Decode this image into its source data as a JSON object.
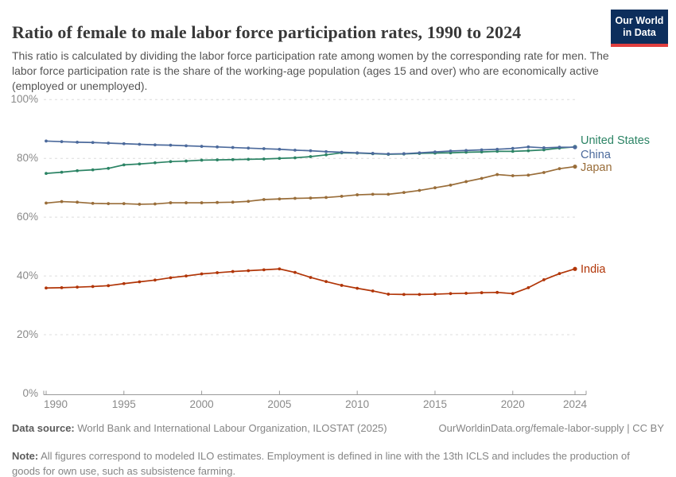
{
  "header": {
    "title": "Ratio of female to male labor force participation rates, 1990 to 2024",
    "subtitle": "This ratio is calculated by dividing the labor force participation rate among women by the corresponding rate for men. The labor force participation rate is the share of the working-age population (ages 15 and over) who are economically active (employed or unemployed).",
    "logo": {
      "line1": "Our World",
      "line2": "in Data"
    }
  },
  "chart_data": {
    "type": "line",
    "title": "Ratio of female to male labor force participation rates, 1990 to 2024",
    "x": [
      1990,
      1991,
      1992,
      1993,
      1994,
      1995,
      1996,
      1997,
      1998,
      1999,
      2000,
      2001,
      2002,
      2003,
      2004,
      2005,
      2006,
      2007,
      2008,
      2009,
      2010,
      2011,
      2012,
      2013,
      2014,
      2015,
      2016,
      2017,
      2018,
      2019,
      2020,
      2021,
      2022,
      2023,
      2024
    ],
    "series": [
      {
        "name": "United States",
        "color": "#2c8465",
        "label_dy": -8,
        "values": [
          74.9,
          75.3,
          75.8,
          76.1,
          76.6,
          77.8,
          78.1,
          78.5,
          78.9,
          79.1,
          79.4,
          79.5,
          79.6,
          79.7,
          79.8,
          80.0,
          80.2,
          80.6,
          81.2,
          81.9,
          81.8,
          81.6,
          81.4,
          81.5,
          81.7,
          81.8,
          81.9,
          82.1,
          82.2,
          82.4,
          82.4,
          82.6,
          82.9,
          83.5,
          83.9
        ]
      },
      {
        "name": "China",
        "color": "#4c6a9c",
        "label_dy": 10,
        "values": [
          85.9,
          85.7,
          85.5,
          85.4,
          85.2,
          85.0,
          84.8,
          84.6,
          84.5,
          84.3,
          84.1,
          83.9,
          83.7,
          83.5,
          83.3,
          83.1,
          82.8,
          82.6,
          82.3,
          82.1,
          81.9,
          81.7,
          81.5,
          81.6,
          81.9,
          82.2,
          82.5,
          82.7,
          82.9,
          83.1,
          83.4,
          83.9,
          83.6,
          83.8,
          83.8
        ]
      },
      {
        "name": "Japan",
        "color": "#996d39",
        "label_dy": 1,
        "values": [
          64.8,
          65.3,
          65.1,
          64.7,
          64.6,
          64.6,
          64.4,
          64.5,
          64.9,
          64.9,
          64.9,
          65.0,
          65.1,
          65.4,
          66.0,
          66.2,
          66.4,
          66.5,
          66.7,
          67.1,
          67.6,
          67.8,
          67.8,
          68.4,
          69.1,
          70.0,
          70.9,
          72.1,
          73.2,
          74.5,
          74.1,
          74.3,
          75.2,
          76.5,
          77.2
        ]
      },
      {
        "name": "India",
        "color": "#b13507",
        "label_dy": 1,
        "values": [
          35.9,
          36.0,
          36.2,
          36.4,
          36.7,
          37.4,
          38.0,
          38.6,
          39.4,
          40.0,
          40.7,
          41.1,
          41.5,
          41.8,
          42.1,
          42.4,
          41.2,
          39.5,
          38.1,
          36.8,
          35.8,
          34.9,
          33.8,
          33.7,
          33.7,
          33.8,
          34.0,
          34.1,
          34.3,
          34.4,
          34.0,
          36.0,
          38.7,
          40.8,
          42.4
        ]
      }
    ],
    "ylim": [
      0,
      100
    ],
    "yticks": [
      0,
      20,
      40,
      60,
      80,
      100
    ],
    "ytick_suffix": "%",
    "xticks": [
      1990,
      1995,
      2000,
      2005,
      2010,
      2015,
      2020,
      2024
    ],
    "grid": "horizontal-dashed",
    "legend": "end-of-line-labels",
    "xlabel": "",
    "ylabel": ""
  },
  "footer": {
    "datasource_label": "Data source:",
    "datasource_text": " World Bank and International Labour Organization, ILOSTAT (2025)",
    "link_text": "OurWorldinData.org/female-labor-supply | CC BY",
    "note_label": "Note:",
    "note_text": " All figures correspond to modeled ILO estimates. Employment is defined in line with the 13th ICLS and includes the production of goods for own use, such as subsistence farming."
  },
  "colors": {
    "grid": "#dcdcdc",
    "axis": "#999999",
    "tick_text": "#8a8a8a",
    "logo_bg": "#0d2e5c",
    "logo_accent": "#e03e3e"
  }
}
